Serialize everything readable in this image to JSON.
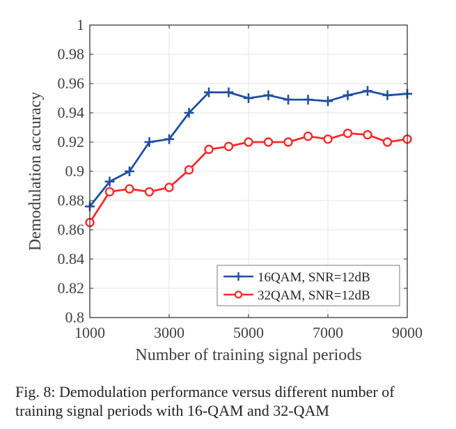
{
  "chart_data": {
    "type": "line",
    "title": "",
    "xlabel": "Number of training signal periods",
    "ylabel": "Demodulation accuracy",
    "xlim": [
      1000,
      9000
    ],
    "ylim": [
      0.8,
      1.0
    ],
    "x_ticks": [
      1000,
      3000,
      5000,
      7000,
      9000
    ],
    "x_tick_labels": [
      "1000",
      "3000",
      "5000",
      "7000",
      "9000"
    ],
    "x_grid": [
      1000,
      3000,
      5000,
      7000,
      9000
    ],
    "y_ticks": [
      0.8,
      0.82,
      0.84,
      0.86,
      0.88,
      0.9,
      0.92,
      0.94,
      0.96,
      0.98,
      1.0
    ],
    "y_tick_labels": [
      "0.8",
      "0.82",
      "0.84",
      "0.86",
      "0.88",
      "0.9",
      "0.92",
      "0.94",
      "0.96",
      "0.98",
      "1"
    ],
    "grid": true,
    "legend_position": "bottom-right",
    "x": [
      1000,
      1500,
      2000,
      2500,
      3000,
      3500,
      4000,
      4500,
      5000,
      5500,
      6000,
      6500,
      7000,
      7500,
      8000,
      8500,
      9000
    ],
    "series": [
      {
        "name": "16QAM, SNR=12dB",
        "color": "#1f4fa0",
        "marker": "plus",
        "values": [
          0.876,
          0.893,
          0.9,
          0.92,
          0.922,
          0.94,
          0.954,
          0.954,
          0.95,
          0.952,
          0.949,
          0.949,
          0.948,
          0.952,
          0.955,
          0.952,
          0.953
        ]
      },
      {
        "name": "32QAM, SNR=12dB",
        "color": "#f52a2a",
        "marker": "circle",
        "values": [
          0.865,
          0.886,
          0.888,
          0.886,
          0.889,
          0.901,
          0.915,
          0.917,
          0.92,
          0.92,
          0.92,
          0.924,
          0.922,
          0.926,
          0.925,
          0.92,
          0.922
        ]
      }
    ]
  },
  "caption": {
    "line1": "Fig. 8: Demodulation performance versus different number of",
    "line2": "training signal periods with 16-QAM and 32-QAM"
  }
}
